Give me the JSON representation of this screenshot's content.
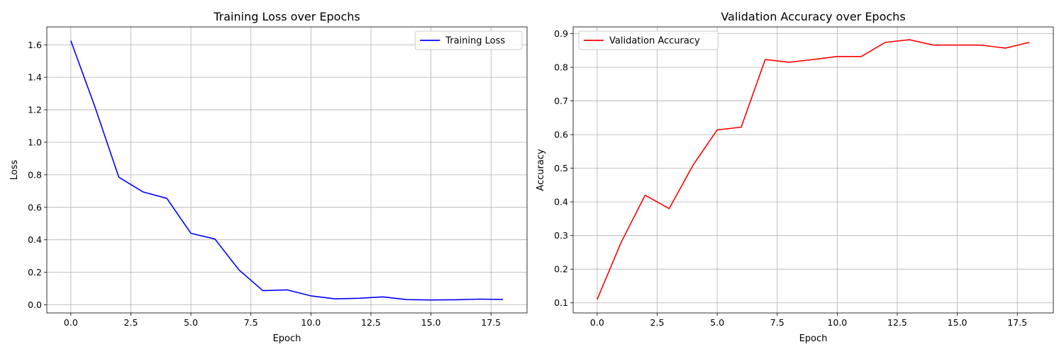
{
  "chart_data": [
    {
      "type": "line",
      "title": "Training Loss over Epochs",
      "xlabel": "Epoch",
      "ylabel": "Loss",
      "xlim": [
        -1,
        19
      ],
      "ylim": [
        -0.05,
        1.71
      ],
      "xticks": [
        0,
        2.5,
        5,
        7.5,
        10,
        12.5,
        15,
        17.5
      ],
      "xtick_labels": [
        "0.0",
        "2.5",
        "5.0",
        "7.5",
        "10.0",
        "12.5",
        "15.0",
        "17.5"
      ],
      "yticks": [
        0,
        0.2,
        0.4,
        0.6,
        0.8,
        1.0,
        1.2,
        1.4,
        1.6
      ],
      "ytick_labels": [
        "0.0",
        "0.2",
        "0.4",
        "0.6",
        "0.8",
        "1.0",
        "1.2",
        "1.4",
        "1.6"
      ],
      "grid": true,
      "legend_position": "top-right",
      "x": [
        0,
        1,
        2,
        3,
        4,
        5,
        6,
        7,
        8,
        9,
        10,
        11,
        12,
        13,
        14,
        15,
        16,
        17,
        18
      ],
      "series": [
        {
          "name": "Training Loss",
          "color": "#0000ff",
          "values": [
            1.625,
            1.22,
            0.785,
            0.695,
            0.655,
            0.44,
            0.405,
            0.215,
            0.087,
            0.092,
            0.055,
            0.037,
            0.04,
            0.049,
            0.032,
            0.03,
            0.031,
            0.035,
            0.033
          ]
        }
      ]
    },
    {
      "type": "line",
      "title": "Validation Accuracy over Epochs",
      "xlabel": "Epoch",
      "ylabel": "Accuracy",
      "xlim": [
        -1,
        19
      ],
      "ylim": [
        0.07,
        0.92
      ],
      "xticks": [
        0,
        2.5,
        5,
        7.5,
        10,
        12.5,
        15,
        17.5
      ],
      "xtick_labels": [
        "0.0",
        "2.5",
        "5.0",
        "7.5",
        "10.0",
        "12.5",
        "15.0",
        "17.5"
      ],
      "yticks": [
        0.1,
        0.2,
        0.3,
        0.4,
        0.5,
        0.6,
        0.7,
        0.8,
        0.9
      ],
      "ytick_labels": [
        "0.1",
        "0.2",
        "0.3",
        "0.4",
        "0.5",
        "0.6",
        "0.7",
        "0.8",
        "0.9"
      ],
      "grid": true,
      "legend_position": "top-left",
      "x": [
        0,
        1,
        2,
        3,
        4,
        5,
        6,
        7,
        8,
        9,
        10,
        11,
        12,
        13,
        14,
        15,
        16,
        17,
        18
      ],
      "series": [
        {
          "name": "Validation Accuracy",
          "color": "#ff0000",
          "values": [
            0.11,
            0.28,
            0.42,
            0.38,
            0.51,
            0.614,
            0.622,
            0.823,
            0.815,
            0.823,
            0.832,
            0.832,
            0.874,
            0.882,
            0.866,
            0.866,
            0.866,
            0.857,
            0.874
          ]
        }
      ]
    }
  ]
}
